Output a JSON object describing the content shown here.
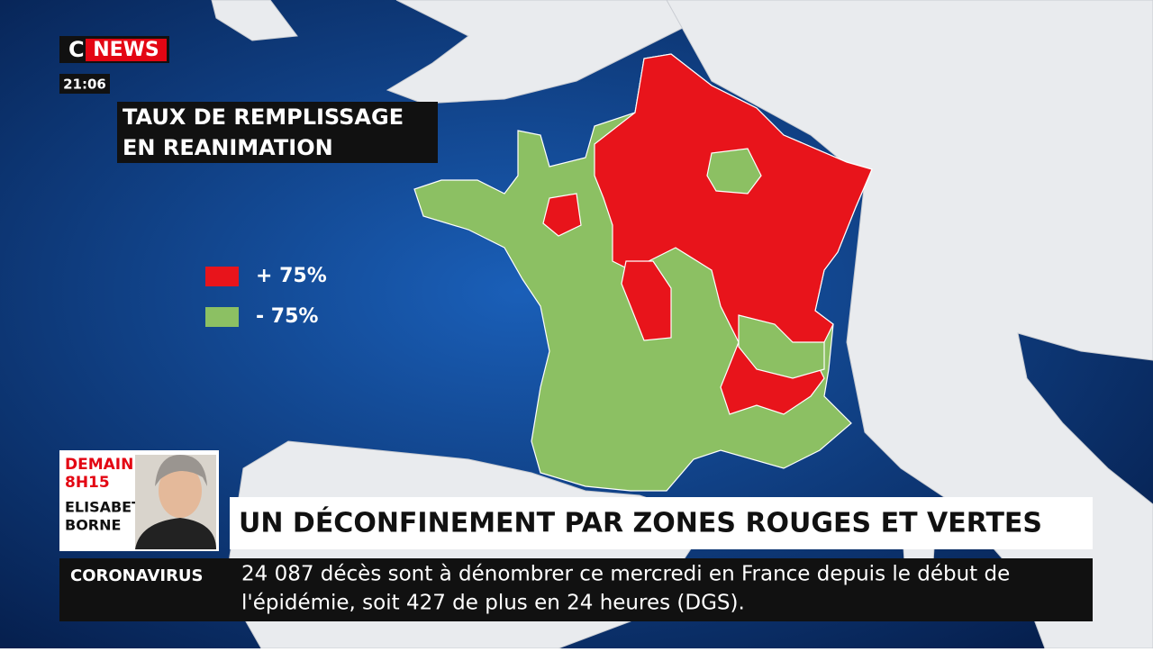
{
  "channel": {
    "logo_prefix": "C",
    "logo_name": "NEWS",
    "time": "21:06"
  },
  "map": {
    "title": [
      "TAUX DE REMPLISSAGE",
      "EN REANIMATION"
    ],
    "legend": [
      {
        "label": "+ 75%",
        "color": "#e8141b"
      },
      {
        "label": "- 75%",
        "color": "#8cc063"
      }
    ]
  },
  "promo": {
    "when": [
      "DEMAIN",
      "8H15"
    ],
    "guest": [
      "ELISABETH",
      "BORNE"
    ]
  },
  "headline": "UN DÉCONFINEMENT PAR ZONES ROUGES ET VERTES",
  "ticker": {
    "topic": "CORONAVIRUS",
    "text": [
      "24 087 décès sont à dénombrer ce mercredi en France depuis le début de",
      "l'épidémie, soit 427 de plus en 24 heures (DGS)."
    ]
  }
}
